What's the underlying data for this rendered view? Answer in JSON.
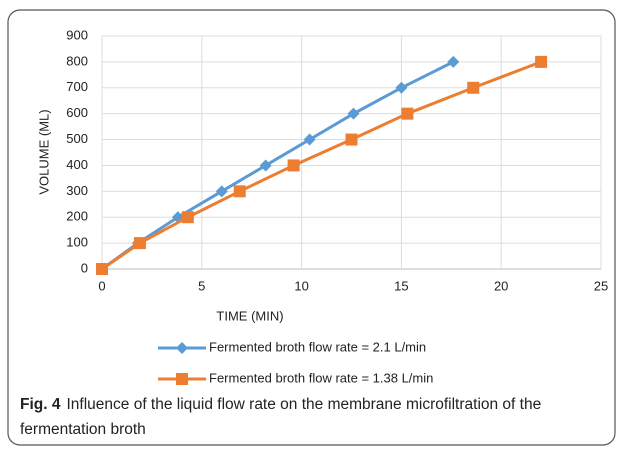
{
  "chart_data": {
    "type": "line",
    "xlabel": "TIME (MIN)",
    "ylabel": "VOLUME (ML)",
    "xlim": [
      0,
      25
    ],
    "xticks": [
      0,
      5,
      10,
      15,
      20,
      25
    ],
    "ylim": [
      0,
      900
    ],
    "yticks": [
      0,
      100,
      200,
      300,
      400,
      500,
      600,
      700,
      800,
      900
    ],
    "grid": true,
    "legend": "bottom",
    "series": [
      {
        "name": "Fermented broth flow rate = 2.1 L/min",
        "color": "#5b9bd5",
        "marker": "diamond",
        "x": [
          0,
          1.8,
          3.8,
          6.0,
          8.2,
          10.4,
          12.6,
          15.0,
          17.6
        ],
        "values": [
          0,
          100,
          200,
          300,
          400,
          500,
          600,
          700,
          800
        ]
      },
      {
        "name": "Fermented broth flow rate = 1.38 L/min",
        "color": "#ed7d31",
        "marker": "square",
        "x": [
          0,
          1.9,
          4.3,
          6.9,
          9.6,
          12.5,
          15.3,
          18.6,
          22.0
        ],
        "values": [
          0,
          100,
          200,
          300,
          400,
          500,
          600,
          700,
          800
        ]
      }
    ]
  },
  "caption": {
    "label": "Fig. 4",
    "text": "Influence of the liquid flow rate on the membrane microfiltration of the fermentation broth"
  }
}
